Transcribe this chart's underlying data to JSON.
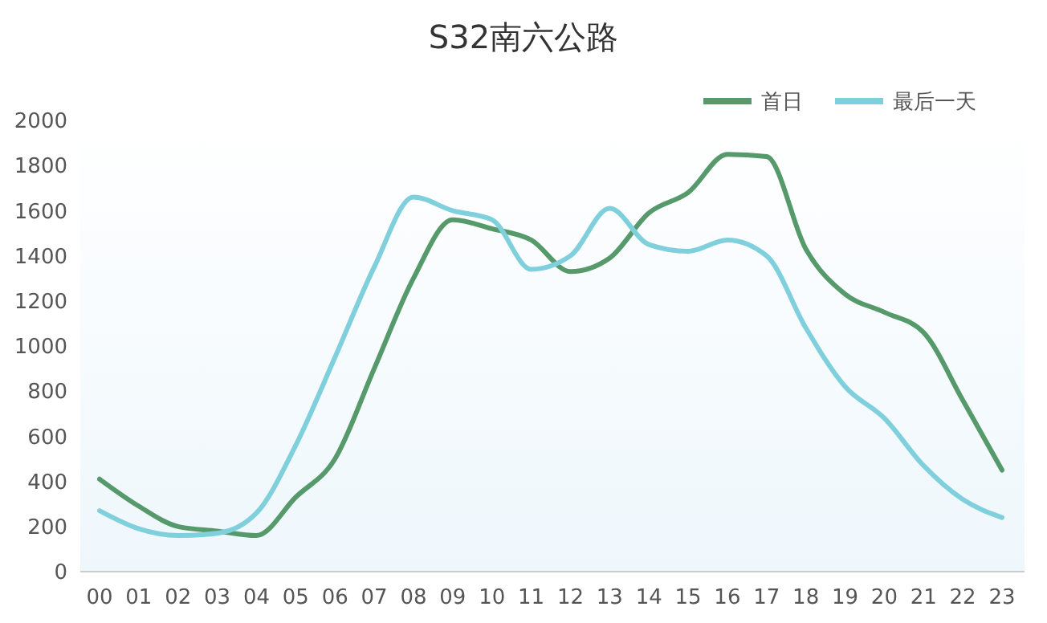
{
  "chart_data": {
    "type": "line",
    "title": "S32南六公路",
    "categories": [
      "00",
      "01",
      "02",
      "03",
      "04",
      "05",
      "06",
      "07",
      "08",
      "09",
      "10",
      "11",
      "12",
      "13",
      "14",
      "15",
      "16",
      "17",
      "18",
      "19",
      "20",
      "21",
      "22",
      "23"
    ],
    "series": [
      {
        "name": "首日",
        "color": "#569a6c",
        "values": [
          410,
          290,
          200,
          180,
          160,
          330,
          500,
          900,
          1300,
          1560,
          1520,
          1470,
          1330,
          1390,
          1590,
          1680,
          1850,
          1840,
          1430,
          1230,
          1150,
          1060,
          760,
          450
        ]
      },
      {
        "name": "最后一天",
        "color": "#7fd0dc",
        "values": [
          270,
          190,
          160,
          170,
          260,
          560,
          950,
          1350,
          1660,
          1600,
          1560,
          1340,
          1400,
          1610,
          1450,
          1420,
          1470,
          1400,
          1080,
          820,
          680,
          470,
          320,
          240
        ]
      }
    ],
    "ylim": [
      0,
      2000
    ],
    "yticks": [
      0,
      200,
      400,
      600,
      800,
      1000,
      1200,
      1400,
      1600,
      1800,
      2000
    ],
    "grid": false,
    "legend": "top right",
    "marker": "none",
    "line_style": "solid"
  }
}
